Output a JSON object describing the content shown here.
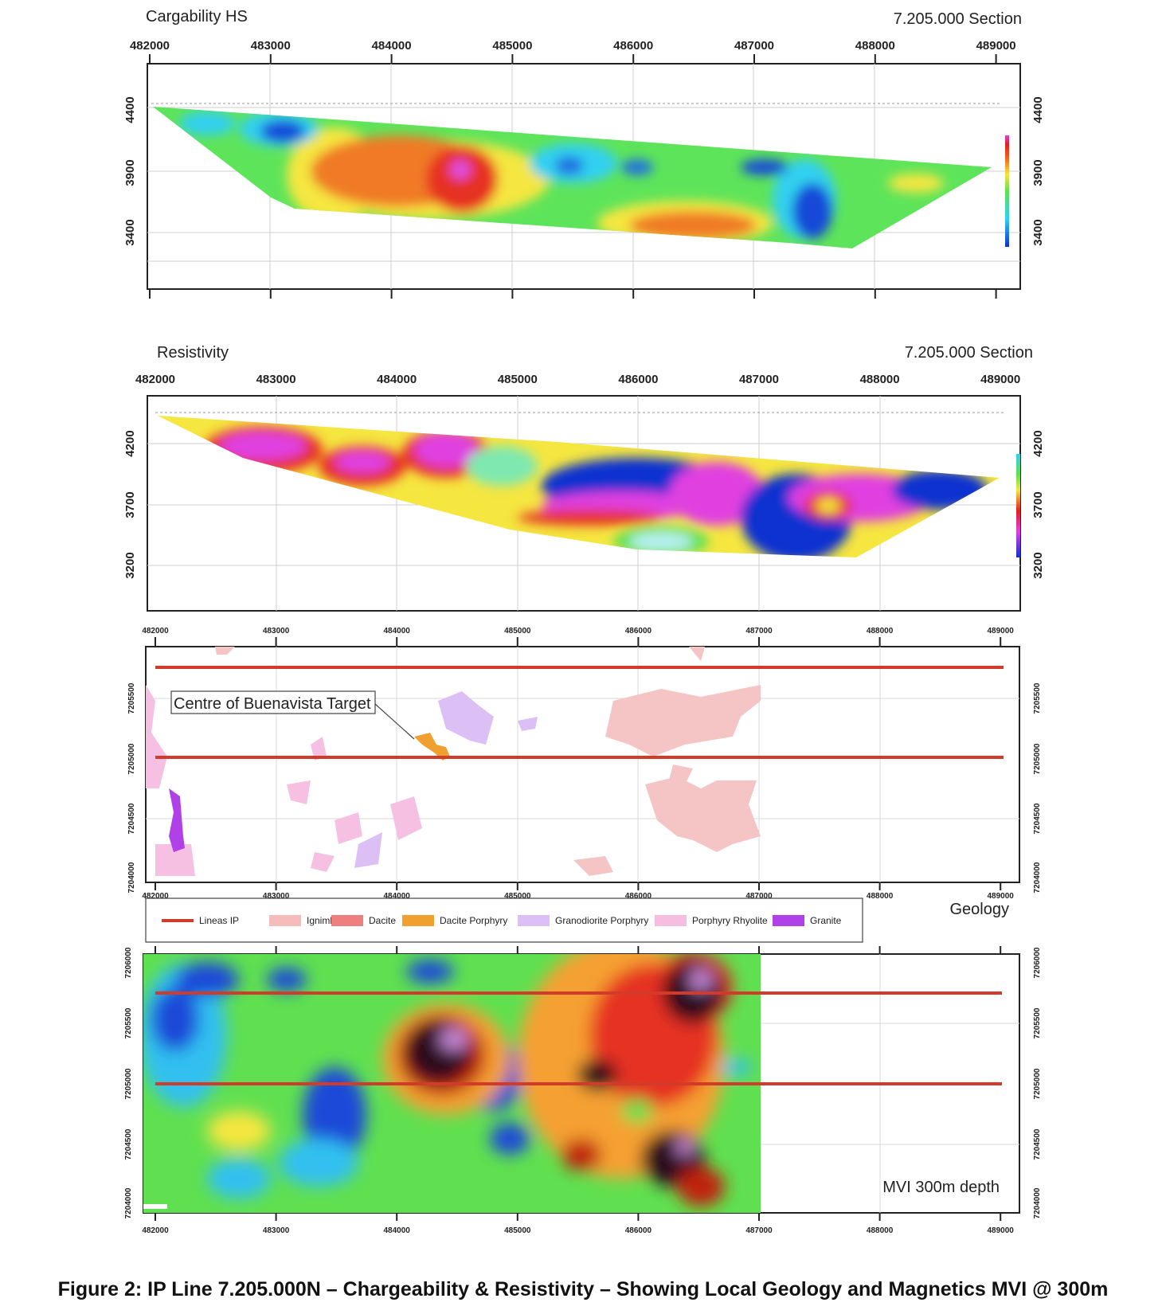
{
  "chargeability": {
    "title": "Cargability HS",
    "section": "7.205.000 Section",
    "x_ticks": [
      "482000",
      "483000",
      "484000",
      "485000",
      "486000",
      "487000",
      "488000",
      "489000"
    ],
    "y_ticks": [
      "4400",
      "3900",
      "3400"
    ]
  },
  "resistivity": {
    "title": "Resistivity",
    "section": "7.205.000 Section",
    "x_ticks": [
      "482000",
      "483000",
      "484000",
      "485000",
      "486000",
      "487000",
      "488000",
      "489000"
    ],
    "y_ticks": [
      "4200",
      "3700",
      "3200"
    ]
  },
  "geology": {
    "x_ticks": [
      "482000",
      "483000",
      "484000",
      "485000",
      "486000",
      "487000",
      "488000",
      "489000"
    ],
    "y_ticks": [
      "7205500",
      "7205000",
      "7204500",
      "7204000"
    ],
    "target_label": "Centre of Buenavista Target",
    "panel_label": "Geology",
    "legend": [
      {
        "label": "Lineas IP",
        "color": "#d23a2a"
      },
      {
        "label": "Ignimbrite",
        "color": "#f5bcbc"
      },
      {
        "label": "Dacite",
        "color": "#ef7f7f"
      },
      {
        "label": "Dacite Porphyry",
        "color": "#f0a030"
      },
      {
        "label": "Granodiorite Porphyry",
        "color": "#dcc0f5"
      },
      {
        "label": "Porphyry Rhyolite",
        "color": "#f5bde0"
      },
      {
        "label": "Granite",
        "color": "#b040e8"
      }
    ]
  },
  "magnetics": {
    "x_ticks": [
      "482000",
      "483000",
      "484000",
      "485000",
      "486000",
      "487000",
      "488000",
      "489000"
    ],
    "y_ticks": [
      "7206000",
      "7205500",
      "7205000",
      "7204500",
      "7204000"
    ],
    "panel_label": "MVI 300m depth"
  },
  "caption": "Figure 2: IP Line 7.205.000N – Chargeability & Resistivity – Showing Local Geology and Magnetics MVI @ 300m"
}
